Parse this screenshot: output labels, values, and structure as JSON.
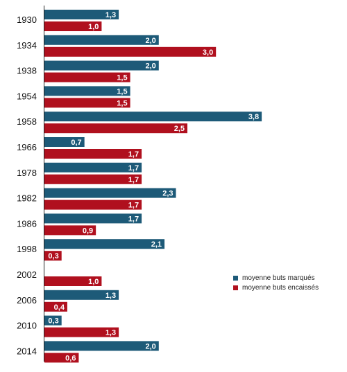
{
  "chart_data": {
    "type": "bar",
    "orientation": "horizontal",
    "categories": [
      "1930",
      "1934",
      "1938",
      "1954",
      "1958",
      "1966",
      "1978",
      "1982",
      "1986",
      "1998",
      "2002",
      "2006",
      "2010",
      "2014"
    ],
    "series": [
      {
        "name": "moyenne buts marqués",
        "color": "#1d5a78",
        "values": [
          1.3,
          2.0,
          2.0,
          1.5,
          3.8,
          0.7,
          1.7,
          2.3,
          1.7,
          2.1,
          null,
          1.3,
          0.3,
          2.0
        ],
        "labels": [
          "1,3",
          "2,0",
          "2,0",
          "1,5",
          "3,8",
          "0,7",
          "1,7",
          "2,3",
          "1,7",
          "2,1",
          "",
          "1,3",
          "0,3",
          "2,0"
        ]
      },
      {
        "name": "moyenne buts encaissés",
        "color": "#b0101e",
        "values": [
          1.0,
          3.0,
          1.5,
          1.5,
          2.5,
          1.7,
          1.7,
          1.7,
          0.9,
          0.3,
          1.0,
          0.4,
          1.3,
          0.6
        ],
        "labels": [
          "1,0",
          "3,0",
          "1,5",
          "1,5",
          "2,5",
          "1,7",
          "1,7",
          "1,7",
          "0,9",
          "0,3",
          "1,0",
          "0,4",
          "1,3",
          "0,6"
        ]
      }
    ],
    "xlim": [
      0,
      3.8
    ],
    "grid": false,
    "legend_position": "right"
  }
}
